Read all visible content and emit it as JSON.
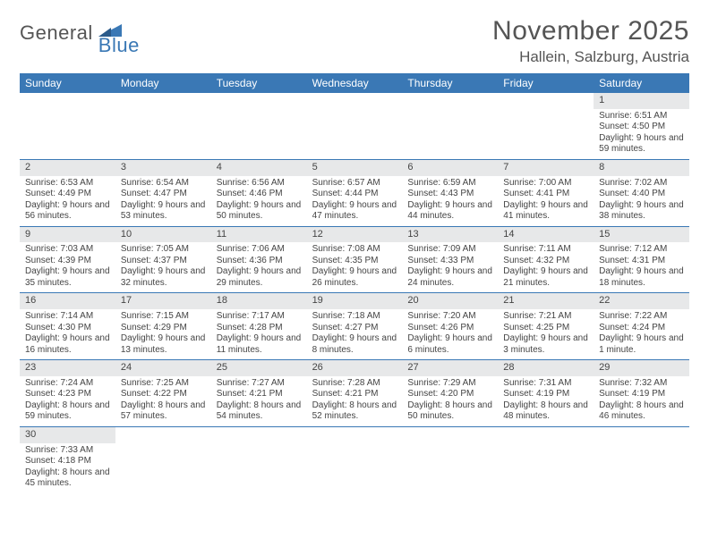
{
  "logo": {
    "text1": "General",
    "text2": "Blue"
  },
  "title": "November 2025",
  "location": "Hallein, Salzburg, Austria",
  "colors": {
    "header_bg": "#3a78b5",
    "daynum_bg": "#e7e8e9",
    "text": "#444444",
    "title_text": "#555555"
  },
  "layout": {
    "columns": 7,
    "rows": 6
  },
  "day_names": [
    "Sunday",
    "Monday",
    "Tuesday",
    "Wednesday",
    "Thursday",
    "Friday",
    "Saturday"
  ],
  "weeks": [
    [
      {
        "empty": true
      },
      {
        "empty": true
      },
      {
        "empty": true
      },
      {
        "empty": true
      },
      {
        "empty": true
      },
      {
        "empty": true
      },
      {
        "day": "1",
        "sunrise": "Sunrise: 6:51 AM",
        "sunset": "Sunset: 4:50 PM",
        "daylight": "Daylight: 9 hours and 59 minutes."
      }
    ],
    [
      {
        "day": "2",
        "sunrise": "Sunrise: 6:53 AM",
        "sunset": "Sunset: 4:49 PM",
        "daylight": "Daylight: 9 hours and 56 minutes."
      },
      {
        "day": "3",
        "sunrise": "Sunrise: 6:54 AM",
        "sunset": "Sunset: 4:47 PM",
        "daylight": "Daylight: 9 hours and 53 minutes."
      },
      {
        "day": "4",
        "sunrise": "Sunrise: 6:56 AM",
        "sunset": "Sunset: 4:46 PM",
        "daylight": "Daylight: 9 hours and 50 minutes."
      },
      {
        "day": "5",
        "sunrise": "Sunrise: 6:57 AM",
        "sunset": "Sunset: 4:44 PM",
        "daylight": "Daylight: 9 hours and 47 minutes."
      },
      {
        "day": "6",
        "sunrise": "Sunrise: 6:59 AM",
        "sunset": "Sunset: 4:43 PM",
        "daylight": "Daylight: 9 hours and 44 minutes."
      },
      {
        "day": "7",
        "sunrise": "Sunrise: 7:00 AM",
        "sunset": "Sunset: 4:41 PM",
        "daylight": "Daylight: 9 hours and 41 minutes."
      },
      {
        "day": "8",
        "sunrise": "Sunrise: 7:02 AM",
        "sunset": "Sunset: 4:40 PM",
        "daylight": "Daylight: 9 hours and 38 minutes."
      }
    ],
    [
      {
        "day": "9",
        "sunrise": "Sunrise: 7:03 AM",
        "sunset": "Sunset: 4:39 PM",
        "daylight": "Daylight: 9 hours and 35 minutes."
      },
      {
        "day": "10",
        "sunrise": "Sunrise: 7:05 AM",
        "sunset": "Sunset: 4:37 PM",
        "daylight": "Daylight: 9 hours and 32 minutes."
      },
      {
        "day": "11",
        "sunrise": "Sunrise: 7:06 AM",
        "sunset": "Sunset: 4:36 PM",
        "daylight": "Daylight: 9 hours and 29 minutes."
      },
      {
        "day": "12",
        "sunrise": "Sunrise: 7:08 AM",
        "sunset": "Sunset: 4:35 PM",
        "daylight": "Daylight: 9 hours and 26 minutes."
      },
      {
        "day": "13",
        "sunrise": "Sunrise: 7:09 AM",
        "sunset": "Sunset: 4:33 PM",
        "daylight": "Daylight: 9 hours and 24 minutes."
      },
      {
        "day": "14",
        "sunrise": "Sunrise: 7:11 AM",
        "sunset": "Sunset: 4:32 PM",
        "daylight": "Daylight: 9 hours and 21 minutes."
      },
      {
        "day": "15",
        "sunrise": "Sunrise: 7:12 AM",
        "sunset": "Sunset: 4:31 PM",
        "daylight": "Daylight: 9 hours and 18 minutes."
      }
    ],
    [
      {
        "day": "16",
        "sunrise": "Sunrise: 7:14 AM",
        "sunset": "Sunset: 4:30 PM",
        "daylight": "Daylight: 9 hours and 16 minutes."
      },
      {
        "day": "17",
        "sunrise": "Sunrise: 7:15 AM",
        "sunset": "Sunset: 4:29 PM",
        "daylight": "Daylight: 9 hours and 13 minutes."
      },
      {
        "day": "18",
        "sunrise": "Sunrise: 7:17 AM",
        "sunset": "Sunset: 4:28 PM",
        "daylight": "Daylight: 9 hours and 11 minutes."
      },
      {
        "day": "19",
        "sunrise": "Sunrise: 7:18 AM",
        "sunset": "Sunset: 4:27 PM",
        "daylight": "Daylight: 9 hours and 8 minutes."
      },
      {
        "day": "20",
        "sunrise": "Sunrise: 7:20 AM",
        "sunset": "Sunset: 4:26 PM",
        "daylight": "Daylight: 9 hours and 6 minutes."
      },
      {
        "day": "21",
        "sunrise": "Sunrise: 7:21 AM",
        "sunset": "Sunset: 4:25 PM",
        "daylight": "Daylight: 9 hours and 3 minutes."
      },
      {
        "day": "22",
        "sunrise": "Sunrise: 7:22 AM",
        "sunset": "Sunset: 4:24 PM",
        "daylight": "Daylight: 9 hours and 1 minute."
      }
    ],
    [
      {
        "day": "23",
        "sunrise": "Sunrise: 7:24 AM",
        "sunset": "Sunset: 4:23 PM",
        "daylight": "Daylight: 8 hours and 59 minutes."
      },
      {
        "day": "24",
        "sunrise": "Sunrise: 7:25 AM",
        "sunset": "Sunset: 4:22 PM",
        "daylight": "Daylight: 8 hours and 57 minutes."
      },
      {
        "day": "25",
        "sunrise": "Sunrise: 7:27 AM",
        "sunset": "Sunset: 4:21 PM",
        "daylight": "Daylight: 8 hours and 54 minutes."
      },
      {
        "day": "26",
        "sunrise": "Sunrise: 7:28 AM",
        "sunset": "Sunset: 4:21 PM",
        "daylight": "Daylight: 8 hours and 52 minutes."
      },
      {
        "day": "27",
        "sunrise": "Sunrise: 7:29 AM",
        "sunset": "Sunset: 4:20 PM",
        "daylight": "Daylight: 8 hours and 50 minutes."
      },
      {
        "day": "28",
        "sunrise": "Sunrise: 7:31 AM",
        "sunset": "Sunset: 4:19 PM",
        "daylight": "Daylight: 8 hours and 48 minutes."
      },
      {
        "day": "29",
        "sunrise": "Sunrise: 7:32 AM",
        "sunset": "Sunset: 4:19 PM",
        "daylight": "Daylight: 8 hours and 46 minutes."
      }
    ],
    [
      {
        "day": "30",
        "sunrise": "Sunrise: 7:33 AM",
        "sunset": "Sunset: 4:18 PM",
        "daylight": "Daylight: 8 hours and 45 minutes."
      },
      {
        "empty": true
      },
      {
        "empty": true
      },
      {
        "empty": true
      },
      {
        "empty": true
      },
      {
        "empty": true
      },
      {
        "empty": true
      }
    ]
  ]
}
